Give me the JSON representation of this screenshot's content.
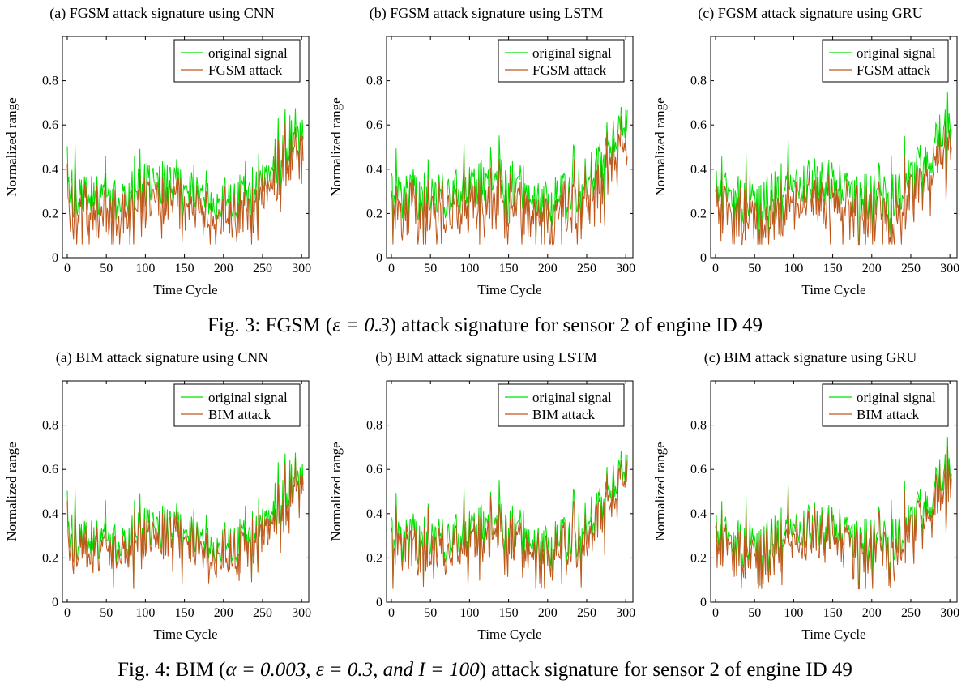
{
  "figure3": {
    "caption_pre": "Fig. 3: FGSM (",
    "caption_math": "ε = 0.3",
    "caption_post": ") attack signature for sensor 2 of engine ID 49",
    "panels": [
      {
        "title": "(a) FGSM attack signature using CNN"
      },
      {
        "title": "(b) FGSM attack signature using LSTM"
      },
      {
        "title": "(c) FGSM attack signature using GRU"
      }
    ]
  },
  "figure4": {
    "caption_pre": "Fig. 4: BIM (",
    "caption_math": "α = 0.003, ε = 0.3, and  I = 100",
    "caption_post": ") attack signature for sensor 2 of engine ID 49",
    "panels": [
      {
        "title": "(a) BIM attack signature using CNN"
      },
      {
        "title": "(b) BIM attack signature using LSTM"
      },
      {
        "title": "(c) BIM attack signature using GRU"
      }
    ]
  },
  "colors": {
    "original": "#00e000",
    "attack": "#c0571a",
    "axis": "#000000"
  },
  "chart_data": [
    {
      "type": "line",
      "title": "(a) FGSM attack signature using CNN",
      "xlabel": "Time Cycle",
      "ylabel": "Normalized range",
      "xlim": [
        0,
        305
      ],
      "ylim": [
        0,
        1.0
      ],
      "xticks": [
        0,
        50,
        100,
        150,
        200,
        250,
        300
      ],
      "yticks": [
        0,
        0.2,
        0.4,
        0.6,
        0.8
      ],
      "ytick_labels": [
        "0",
        "0.2",
        "0.4",
        "0.6",
        "0.8"
      ],
      "legend": "top-right",
      "series": [
        {
          "name": "original signal",
          "color": "#00e000"
        },
        {
          "name": "FGSM attack",
          "color": "#c0571a"
        }
      ]
    },
    {
      "type": "line",
      "title": "(b) FGSM attack signature using LSTM",
      "xlabel": "Time Cycle",
      "ylabel": "Normalized range",
      "xlim": [
        0,
        305
      ],
      "ylim": [
        0,
        1.0
      ],
      "xticks": [
        0,
        50,
        100,
        150,
        200,
        250,
        300
      ],
      "yticks": [
        0,
        0.2,
        0.4,
        0.6,
        0.8
      ],
      "ytick_labels": [
        "0",
        "0.2",
        "0.4",
        "0.6",
        "0.8"
      ],
      "legend": "top-right",
      "series": [
        {
          "name": "original signal",
          "color": "#00e000"
        },
        {
          "name": "FGSM attack",
          "color": "#c0571a"
        }
      ]
    },
    {
      "type": "line",
      "title": "(c) FGSM attack signature using GRU",
      "xlabel": "Time Cycle",
      "ylabel": "Normalized range",
      "xlim": [
        0,
        305
      ],
      "ylim": [
        0,
        1.0
      ],
      "xticks": [
        0,
        50,
        100,
        150,
        200,
        250,
        300
      ],
      "yticks": [
        0,
        0.2,
        0.4,
        0.6,
        0.8
      ],
      "ytick_labels": [
        "0",
        "0.2",
        "0.4",
        "0.6",
        "0.8"
      ],
      "legend": "top-right",
      "series": [
        {
          "name": "original signal",
          "color": "#00e000"
        },
        {
          "name": "FGSM attack",
          "color": "#c0571a"
        }
      ]
    },
    {
      "type": "line",
      "title": "(a) BIM attack signature using CNN",
      "xlabel": "Time Cycle",
      "ylabel": "Normalized range",
      "xlim": [
        0,
        305
      ],
      "ylim": [
        0,
        1.0
      ],
      "xticks": [
        0,
        50,
        100,
        150,
        200,
        250,
        300
      ],
      "yticks": [
        0,
        0.2,
        0.4,
        0.6,
        0.8
      ],
      "ytick_labels": [
        "0",
        "0.2",
        "0.4",
        "0.6",
        "0.8"
      ],
      "legend": "top-right",
      "series": [
        {
          "name": "original signal",
          "color": "#00e000"
        },
        {
          "name": "BIM attack",
          "color": "#c0571a"
        }
      ]
    },
    {
      "type": "line",
      "title": "(b) BIM attack signature using LSTM",
      "xlabel": "Time Cycle",
      "ylabel": "Normalized range",
      "xlim": [
        0,
        305
      ],
      "ylim": [
        0,
        1.0
      ],
      "xticks": [
        0,
        50,
        100,
        150,
        200,
        250,
        300
      ],
      "yticks": [
        0,
        0.2,
        0.4,
        0.6,
        0.8
      ],
      "ytick_labels": [
        "0",
        "0.2",
        "0.4",
        "0.6",
        "0.8"
      ],
      "legend": "top-right",
      "series": [
        {
          "name": "original signal",
          "color": "#00e000"
        },
        {
          "name": "BIM attack",
          "color": "#c0571a"
        }
      ]
    },
    {
      "type": "line",
      "title": "(c) BIM attack signature using GRU",
      "xlabel": "Time Cycle",
      "ylabel": "Normalized range",
      "xlim": [
        0,
        305
      ],
      "ylim": [
        0,
        1.0
      ],
      "xticks": [
        0,
        50,
        100,
        150,
        200,
        250,
        300
      ],
      "yticks": [
        0,
        0.2,
        0.4,
        0.6,
        0.8
      ],
      "ytick_labels": [
        "0",
        "0.2",
        "0.4",
        "0.6",
        "0.8"
      ],
      "legend": "top-right",
      "series": [
        {
          "name": "original signal",
          "color": "#00e000"
        },
        {
          "name": "BIM attack",
          "color": "#c0571a"
        }
      ]
    }
  ]
}
